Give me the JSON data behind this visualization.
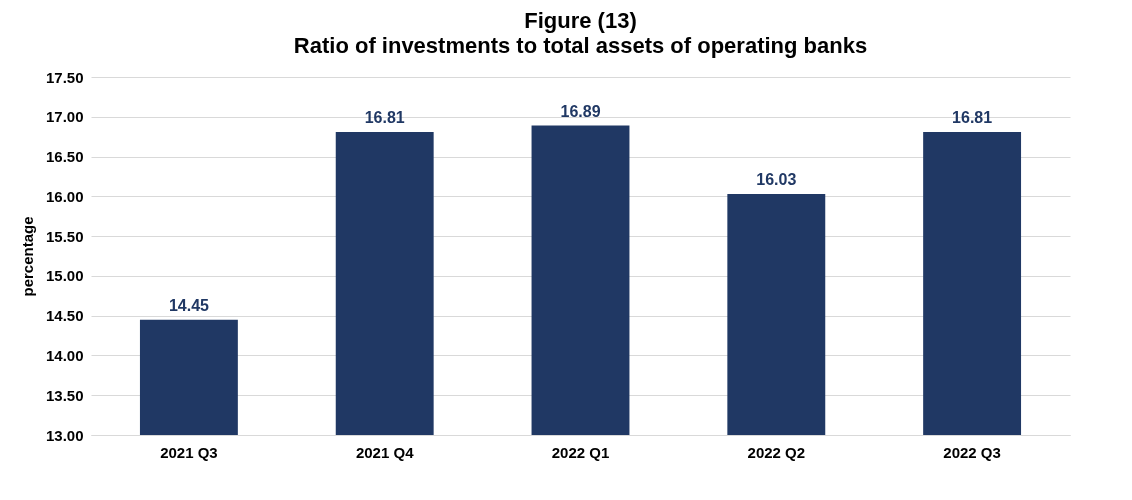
{
  "chart_data": {
    "type": "bar",
    "title": "Figure (13)",
    "subtitle": "Ratio of investments to total assets of operating banks",
    "ylabel": "percentage",
    "categories": [
      "2021 Q3",
      "2021 Q4",
      "2022 Q1",
      "2022 Q2",
      "2022 Q3"
    ],
    "values": [
      14.45,
      16.81,
      16.89,
      16.03,
      16.81
    ],
    "color": "#203864",
    "ylim": [
      13,
      17.5
    ],
    "yticks": [
      {
        "value": 13,
        "label": "13.00"
      },
      {
        "value": 13.5,
        "label": "13.50"
      },
      {
        "value": 14,
        "label": "14.00"
      },
      {
        "value": 14.5,
        "label": "14.50"
      },
      {
        "value": 15,
        "label": "15.00"
      },
      {
        "value": 15.5,
        "label": "15.50"
      },
      {
        "value": 16,
        "label": "16.00"
      },
      {
        "value": 16.5,
        "label": "16.50"
      },
      {
        "value": 17,
        "label": "17.00"
      },
      {
        "value": 17.5,
        "label": "17.50"
      }
    ],
    "grid": "y",
    "data_labels": true
  }
}
